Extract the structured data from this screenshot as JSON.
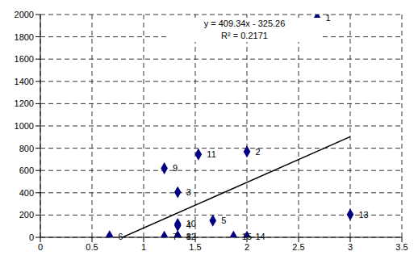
{
  "chart_data": {
    "type": "scatter",
    "x": [
      2.68,
      2.0,
      1.33,
      1.33,
      1.67,
      0.67,
      1.2,
      1.33,
      1.2,
      1.33,
      1.53,
      1.33,
      3.0,
      2.0,
      1.87
    ],
    "values": [
      1970,
      770,
      405,
      105,
      150,
      10,
      5,
      10,
      620,
      120,
      745,
      5,
      205,
      5,
      5
    ],
    "labels": [
      "1",
      "2",
      "3",
      "4",
      "5",
      "6",
      "7",
      "8",
      "9",
      "10",
      "11",
      "12",
      "13",
      "14",
      "15"
    ],
    "color": "#000080",
    "marker": "diamond",
    "trendline": {
      "slope": 409.34,
      "intercept": -325.26,
      "color": "#000000"
    },
    "annotations": [
      "y = 409.34x - 325.26",
      "R² = 0.2171"
    ],
    "xlim": [
      0,
      3.5
    ],
    "xticks": [
      0,
      0.5,
      1,
      1.5,
      2,
      2.5,
      3,
      3.5
    ],
    "ylim": [
      0,
      2000
    ],
    "yticks": [
      0,
      200,
      400,
      600,
      800,
      1000,
      1200,
      1400,
      1600,
      1800,
      2000
    ],
    "grid": true
  }
}
